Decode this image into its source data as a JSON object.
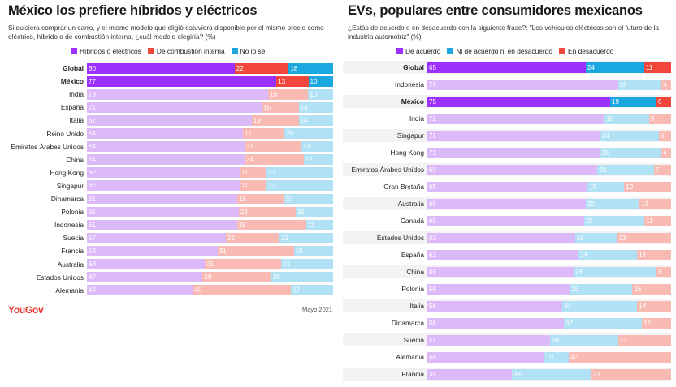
{
  "chart_data": [
    {
      "type": "bar",
      "stacked": true,
      "orientation": "horizontal",
      "title": "México los prefiere híbridos y eléctricos",
      "subtitle": "Si quisiera comprar un carro, y el mismo modelo que eligió estuviera disponible por el mismo precio como eléctrico, híbrido o de combustión interna, ¿cuál modelo elegiría? (%)",
      "legend_position": "top",
      "series": [
        {
          "name": "Híbridos o eléctricos",
          "color": "#9b30ff",
          "light_color": "#dcb9f9"
        },
        {
          "name": "De combustión interna",
          "color": "#f0463c",
          "light_color": "#f8bab3"
        },
        {
          "name": "No lo sé",
          "color": "#1ba8e0",
          "light_color": "#b1e1f4"
        }
      ],
      "categories": [
        "Global",
        "México",
        "India",
        "España",
        "Italia",
        "Reino Unido",
        "Emiratos Árabes Unidos",
        "China",
        "Hong Kong",
        "Singapur",
        "Dinamarca",
        "Polonia",
        "Indonesia",
        "Suecia",
        "Francia",
        "Australia",
        "Estados Unidos",
        "Alemania"
      ],
      "highlighted": [
        "Global",
        "México"
      ],
      "values": [
        [
          60,
          22,
          18
        ],
        [
          77,
          13,
          10
        ],
        [
          73,
          16,
          10
        ],
        [
          71,
          15,
          14
        ],
        [
          67,
          19,
          14
        ],
        [
          64,
          17,
          20
        ],
        [
          64,
          23,
          13
        ],
        [
          64,
          24,
          12
        ],
        [
          62,
          11,
          27
        ],
        [
          62,
          11,
          27
        ],
        [
          61,
          19,
          20
        ],
        [
          61,
          23,
          15
        ],
        [
          61,
          28,
          11
        ],
        [
          57,
          22,
          22
        ],
        [
          53,
          31,
          16
        ],
        [
          48,
          31,
          21
        ],
        [
          47,
          28,
          25
        ],
        [
          43,
          40,
          17
        ]
      ],
      "source": "YouGov",
      "date": "Mayo 2021"
    },
    {
      "type": "bar",
      "stacked": true,
      "orientation": "horizontal",
      "title": "EVs, populares entre consumidores mexicanos",
      "subtitle": "¿Estás de acuerdo o en desacuerdo con la siguiente frase?: \"Los vehículos eléctricos son el futuro de la industria automotriz\" (%)",
      "legend_position": "top",
      "series": [
        {
          "name": "De acuerdo",
          "color": "#9b30ff",
          "light_color": "#dcb9f9"
        },
        {
          "name": "Ni de acuerdo ni en desacuerdo",
          "color": "#1ba8e0",
          "light_color": "#b1e1f4"
        },
        {
          "name": "En desacuerdo",
          "color": "#f0463c",
          "light_color": "#f8bab3"
        }
      ],
      "categories": [
        "Global",
        "Indonesia",
        "México",
        "India",
        "Singapur",
        "Hong Kong",
        "Emiratos Árabes Unidos",
        "Gran Bretaña",
        "Australia",
        "Canadá",
        "Estados Unidos",
        "España",
        "China",
        "Polonia",
        "Italia",
        "Dinamarca",
        "Suecia",
        "Alemania",
        "Francia"
      ],
      "highlighted": [
        "Global",
        "México"
      ],
      "values": [
        [
          65,
          24,
          11
        ],
        [
          79,
          18,
          4
        ],
        [
          75,
          19,
          6
        ],
        [
          72,
          18,
          9
        ],
        [
          71,
          24,
          5
        ],
        [
          71,
          25,
          4
        ],
        [
          69,
          23,
          7
        ],
        [
          65,
          15,
          19
        ],
        [
          65,
          22,
          13
        ],
        [
          65,
          25,
          11
        ],
        [
          63,
          18,
          23
        ],
        [
          62,
          24,
          14
        ],
        [
          60,
          34,
          6
        ],
        [
          59,
          26,
          16
        ],
        [
          56,
          31,
          14
        ],
        [
          56,
          32,
          12
        ],
        [
          51,
          28,
          22
        ],
        [
          48,
          10,
          42
        ],
        [
          35,
          33,
          33
        ]
      ]
    }
  ]
}
